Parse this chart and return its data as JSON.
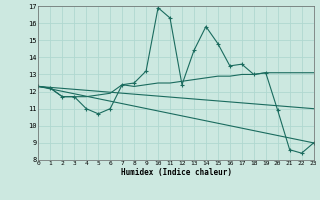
{
  "xlabel": "Humidex (Indice chaleur)",
  "xlim": [
    0,
    23
  ],
  "ylim": [
    8,
    17
  ],
  "yticks": [
    8,
    9,
    10,
    11,
    12,
    13,
    14,
    15,
    16,
    17
  ],
  "xticks": [
    0,
    1,
    2,
    3,
    4,
    5,
    6,
    7,
    8,
    9,
    10,
    11,
    12,
    13,
    14,
    15,
    16,
    17,
    18,
    19,
    20,
    21,
    22,
    23
  ],
  "bg_color": "#cce8e0",
  "line_color": "#1a6b5e",
  "grid_color": "#b0d8d0",
  "line_main": [
    [
      0,
      12.3
    ],
    [
      1,
      12.2
    ],
    [
      2,
      11.7
    ],
    [
      3,
      11.7
    ],
    [
      4,
      11.0
    ],
    [
      5,
      10.7
    ],
    [
      6,
      11.0
    ],
    [
      7,
      12.4
    ],
    [
      8,
      12.5
    ],
    [
      9,
      13.2
    ],
    [
      10,
      16.9
    ],
    [
      11,
      16.3
    ],
    [
      12,
      12.4
    ],
    [
      13,
      14.4
    ],
    [
      14,
      15.8
    ],
    [
      15,
      14.8
    ],
    [
      16,
      13.5
    ],
    [
      17,
      13.6
    ],
    [
      18,
      13.0
    ],
    [
      19,
      13.1
    ],
    [
      20,
      10.9
    ],
    [
      21,
      8.6
    ],
    [
      22,
      8.4
    ],
    [
      23,
      9.0
    ]
  ],
  "line_trend": [
    [
      0,
      12.3
    ],
    [
      1,
      12.2
    ],
    [
      2,
      11.7
    ],
    [
      3,
      11.7
    ],
    [
      4,
      11.7
    ],
    [
      5,
      11.8
    ],
    [
      6,
      11.9
    ],
    [
      7,
      12.4
    ],
    [
      8,
      12.3
    ],
    [
      9,
      12.4
    ],
    [
      10,
      12.5
    ],
    [
      11,
      12.5
    ],
    [
      12,
      12.6
    ],
    [
      13,
      12.7
    ],
    [
      14,
      12.8
    ],
    [
      15,
      12.9
    ],
    [
      16,
      12.9
    ],
    [
      17,
      13.0
    ],
    [
      18,
      13.0
    ],
    [
      19,
      13.1
    ],
    [
      20,
      13.1
    ],
    [
      21,
      13.1
    ],
    [
      22,
      13.1
    ],
    [
      23,
      13.1
    ]
  ],
  "line_low1": [
    [
      0,
      12.3
    ],
    [
      23,
      11.0
    ]
  ],
  "line_low2": [
    [
      0,
      12.3
    ],
    [
      23,
      9.0
    ]
  ]
}
